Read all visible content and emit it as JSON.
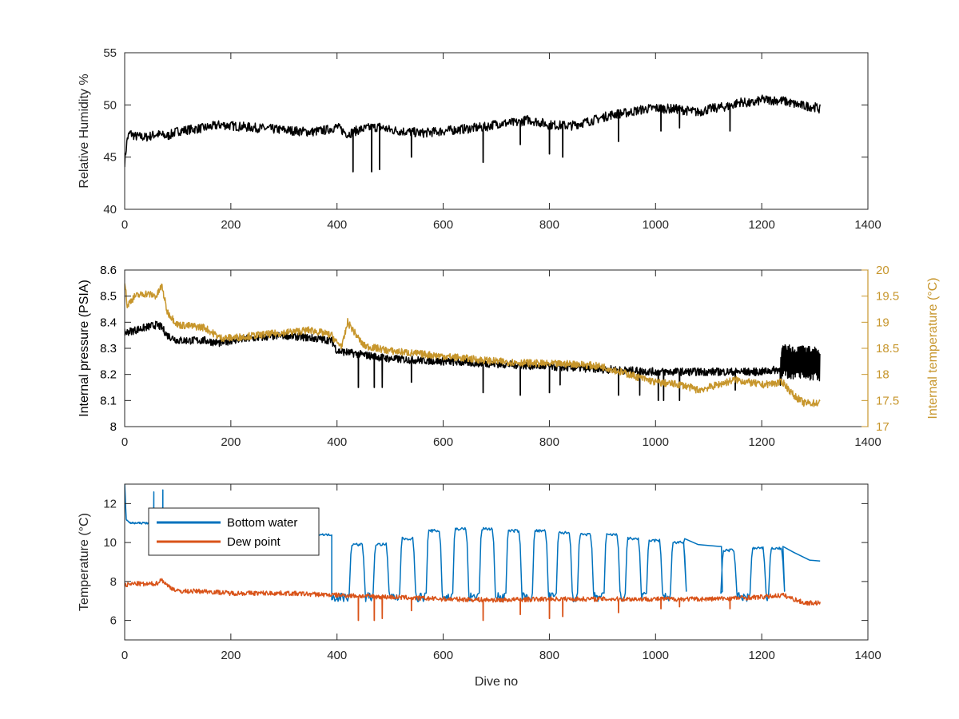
{
  "figure": {
    "xlabel": "Dive no",
    "colors": {
      "axis": "#262626",
      "black": "#000000",
      "blue": "#0072BD",
      "orange": "#D95319",
      "gold": "#C7962C"
    }
  },
  "chart_data": [
    {
      "type": "line",
      "ylabel": "Relative Humidity %",
      "xlim": [
        0,
        1400
      ],
      "ylim": [
        40,
        55
      ],
      "xticks": [
        0,
        200,
        400,
        600,
        800,
        1000,
        1200,
        1400
      ],
      "yticks": [
        40,
        45,
        50,
        55
      ],
      "grid": false,
      "series": [
        {
          "color": "#000000",
          "x": [
            0,
            5,
            10,
            20,
            40,
            60,
            80,
            100,
            150,
            180,
            200,
            250,
            300,
            350,
            380,
            400,
            420,
            440,
            460,
            480,
            500,
            540,
            560,
            600,
            640,
            680,
            700,
            740,
            760,
            800,
            840,
            880,
            900,
            920,
            940,
            960,
            980,
            1000,
            1040,
            1080,
            1100,
            1140,
            1160,
            1180,
            1200,
            1240,
            1260,
            1280,
            1300,
            1310
          ],
          "y": [
            44.5,
            46.8,
            47.3,
            47.0,
            46.9,
            47.2,
            47.0,
            47.5,
            47.8,
            48.1,
            48.0,
            47.8,
            47.6,
            47.4,
            47.6,
            47.9,
            47.2,
            47.6,
            47.8,
            47.9,
            47.6,
            47.4,
            47.3,
            47.5,
            47.7,
            47.9,
            48.2,
            48.3,
            48.6,
            48.1,
            48.0,
            48.5,
            48.8,
            49.1,
            49.2,
            49.4,
            49.6,
            49.7,
            49.6,
            49.3,
            49.6,
            49.9,
            50.3,
            50.1,
            50.5,
            50.4,
            50.1,
            49.9,
            49.8,
            49.6
          ],
          "spikes": [
            [
              430,
              43.6
            ],
            [
              465,
              43.6
            ],
            [
              480,
              43.8
            ],
            [
              540,
              45.0
            ],
            [
              675,
              44.5
            ],
            [
              745,
              46.2
            ],
            [
              800,
              45.3
            ],
            [
              825,
              45.0
            ],
            [
              930,
              46.5
            ],
            [
              1010,
              47.5
            ],
            [
              1045,
              47.8
            ],
            [
              1140,
              47.5
            ]
          ],
          "noise": 0.45
        }
      ]
    },
    {
      "type": "line",
      "ylabel": "Internal pressure (PSIA)",
      "y2label": "Internal temperature (°C)",
      "xlim": [
        0,
        1400
      ],
      "ylim": [
        8,
        8.6
      ],
      "y2lim": [
        17,
        20
      ],
      "xticks": [
        0,
        200,
        400,
        600,
        800,
        1000,
        1200,
        1400
      ],
      "yticks": [
        8,
        8.1,
        8.2,
        8.3,
        8.4,
        8.5,
        8.6
      ],
      "y2ticks": [
        17,
        17.5,
        18,
        18.5,
        19,
        19.5,
        20
      ],
      "grid": false,
      "series": [
        {
          "color": "#000000",
          "axis": "left",
          "x": [
            0,
            20,
            40,
            60,
            70,
            80,
            100,
            150,
            180,
            200,
            250,
            300,
            350,
            390,
            400,
            500,
            600,
            700,
            800,
            900,
            1000,
            1100,
            1200,
            1235,
            1240,
            1310
          ],
          "y": [
            8.36,
            8.37,
            8.38,
            8.39,
            8.38,
            8.35,
            8.33,
            8.33,
            8.32,
            8.33,
            8.34,
            8.35,
            8.34,
            8.33,
            8.29,
            8.26,
            8.25,
            8.24,
            8.23,
            8.22,
            8.21,
            8.21,
            8.21,
            8.22,
            8.25,
            8.24
          ],
          "spikes": [
            [
              440,
              8.15
            ],
            [
              470,
              8.15
            ],
            [
              485,
              8.15
            ],
            [
              540,
              8.17
            ],
            [
              675,
              8.13
            ],
            [
              745,
              8.12
            ],
            [
              800,
              8.13
            ],
            [
              820,
              8.16
            ],
            [
              930,
              8.12
            ],
            [
              970,
              8.12
            ],
            [
              1005,
              8.1
            ],
            [
              1015,
              8.1
            ],
            [
              1045,
              8.1
            ],
            [
              1150,
              8.14
            ]
          ],
          "noise": 0.015,
          "oscillation": [
            1235,
            1310,
            0.05
          ]
        },
        {
          "color": "#C7962C",
          "axis": "right",
          "x": [
            0,
            5,
            10,
            20,
            40,
            60,
            70,
            80,
            100,
            150,
            180,
            200,
            250,
            300,
            350,
            390,
            400,
            410,
            420,
            450,
            500,
            600,
            700,
            800,
            850,
            900,
            950,
            1000,
            1050,
            1080,
            1100,
            1150,
            1200,
            1240,
            1260,
            1280,
            1300,
            1310
          ],
          "y": [
            19.8,
            19.3,
            19.4,
            19.5,
            19.55,
            19.5,
            19.7,
            19.2,
            18.95,
            18.9,
            18.7,
            18.7,
            18.75,
            18.8,
            18.85,
            18.75,
            18.6,
            18.55,
            19.0,
            18.55,
            18.45,
            18.35,
            18.25,
            18.2,
            18.2,
            18.15,
            18.0,
            17.85,
            17.8,
            17.7,
            17.75,
            17.9,
            17.8,
            17.85,
            17.6,
            17.45,
            17.45,
            17.45
          ],
          "noise": 0.07
        }
      ]
    },
    {
      "type": "line",
      "ylabel": "Temperature (°C)",
      "xlabel": "Dive no",
      "xlim": [
        0,
        1400
      ],
      "ylim": [
        5,
        13
      ],
      "xticks": [
        0,
        200,
        400,
        600,
        800,
        1000,
        1200,
        1400
      ],
      "yticks": [
        6,
        8,
        10,
        12
      ],
      "grid": false,
      "legend": "top-left",
      "series": [
        {
          "name": "Bottom water",
          "color": "#0072BD",
          "x": [
            0,
            3,
            10,
            20,
            40,
            60,
            70,
            80,
            100,
            200,
            300,
            380,
            390
          ],
          "y": [
            13.0,
            11.2,
            11.0,
            11.0,
            11.0,
            11.05,
            11.1,
            10.9,
            10.85,
            10.75,
            10.55,
            10.4,
            10.4
          ],
          "spikes_up": [
            [
              55,
              12.6
            ],
            [
              72,
              12.7
            ]
          ],
          "oscillation_segment": {
            "start": 390,
            "end": 1240,
            "low": 7.2,
            "peaks": [
              [
                440,
                10.0
              ],
              [
                485,
                10.0
              ],
              [
                535,
                10.3
              ],
              [
                585,
                10.7
              ],
              [
                635,
                10.8
              ],
              [
                685,
                10.8
              ],
              [
                735,
                10.7
              ],
              [
                785,
                10.7
              ],
              [
                830,
                10.6
              ],
              [
                870,
                10.5
              ],
              [
                920,
                10.5
              ],
              [
                960,
                10.3
              ],
              [
                1000,
                10.2
              ],
              [
                1045,
                10.1
              ],
              [
                1140,
                9.7
              ],
              [
                1195,
                9.8
              ],
              [
                1230,
                9.8
              ]
            ],
            "plateau": [
              [
                1055,
                10.2
              ],
              [
                1080,
                9.9
              ],
              [
                1120,
                9.8
              ]
            ]
          },
          "tail": [
            [
              1240,
              9.8
            ],
            [
              1260,
              9.5
            ],
            [
              1290,
              9.1
            ],
            [
              1310,
              9.05
            ]
          ],
          "noise": 0.05
        },
        {
          "name": "Dew point",
          "color": "#D95319",
          "x": [
            0,
            20,
            40,
            60,
            70,
            80,
            100,
            150,
            200,
            300,
            400,
            500,
            600,
            700,
            800,
            900,
            1000,
            1100,
            1200,
            1240,
            1260,
            1280,
            1300,
            1310
          ],
          "y": [
            7.8,
            7.9,
            7.85,
            7.9,
            8.1,
            7.8,
            7.5,
            7.5,
            7.4,
            7.4,
            7.3,
            7.2,
            7.1,
            7.05,
            7.1,
            7.1,
            7.1,
            7.1,
            7.2,
            7.3,
            7.1,
            6.9,
            6.9,
            6.9
          ],
          "spikes": [
            [
              440,
              6.0
            ],
            [
              470,
              6.0
            ],
            [
              485,
              6.1
            ],
            [
              540,
              6.5
            ],
            [
              675,
              6.0
            ],
            [
              745,
              6.3
            ],
            [
              800,
              6.1
            ],
            [
              825,
              6.2
            ],
            [
              930,
              6.4
            ],
            [
              1010,
              6.6
            ],
            [
              1045,
              6.7
            ],
            [
              1140,
              6.6
            ]
          ],
          "noise": 0.12
        }
      ]
    }
  ]
}
